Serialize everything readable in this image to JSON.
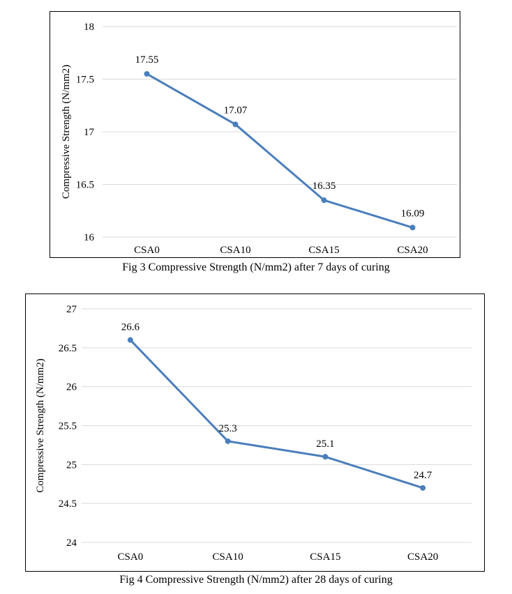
{
  "figures": [
    {
      "caption": "Fig 3 Compressive Strength (N/mm2) after 7 days of curing"
    },
    {
      "caption": "Fig 4 Compressive Strength (N/mm2) after 28 days of curing"
    }
  ],
  "chart_data": [
    {
      "type": "line",
      "title": "",
      "xlabel": "",
      "ylabel": "Compressive Strength (N/mm2)",
      "categories": [
        "CSA0",
        "CSA10",
        "CSA15",
        "CSA20"
      ],
      "series": [
        {
          "values": [
            17.55,
            17.07,
            16.35,
            16.09
          ],
          "labels": [
            "17.55",
            "17.07",
            "16.35",
            "16.09"
          ],
          "color": "#4a7ebb"
        }
      ],
      "yticks": [
        "16",
        "16.5",
        "17",
        "17.5",
        "18"
      ],
      "ylim": [
        16,
        18
      ],
      "grid": true,
      "gridColor": "#d9d9d9"
    },
    {
      "type": "line",
      "title": "",
      "xlabel": "",
      "ylabel": "Compressive Strength (N/mm2)",
      "categories": [
        "CSA0",
        "CSA10",
        "CSA15",
        "CSA20"
      ],
      "series": [
        {
          "values": [
            26.6,
            25.3,
            25.1,
            24.7
          ],
          "labels": [
            "26.6",
            "25.3",
            "25.1",
            "24.7"
          ],
          "color": "#4a7ebb"
        }
      ],
      "yticks": [
        "24",
        "24.5",
        "25",
        "25.5",
        "26",
        "26.5",
        "27"
      ],
      "ylim": [
        24,
        27
      ],
      "grid": true,
      "gridColor": "#d9d9d9"
    }
  ]
}
